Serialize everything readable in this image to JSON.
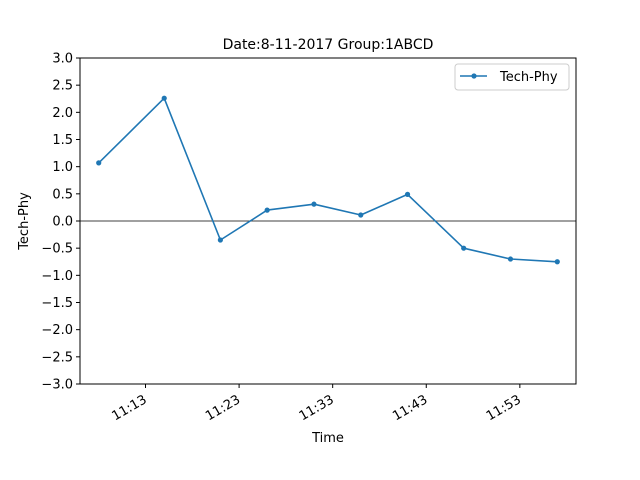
{
  "chart_data": {
    "type": "line",
    "title": "Date:8-11-2017 Group:1ABCD",
    "xlabel": "Time",
    "ylabel": "Tech-Phy",
    "x": [
      "11:08",
      "11:15",
      "11:21",
      "11:26",
      "11:31",
      "11:36",
      "11:41",
      "11:47",
      "11:52",
      "11:57"
    ],
    "series": [
      {
        "name": "Tech-Phy",
        "color": "#1f77b4",
        "marker": "circle",
        "values": [
          1.07,
          2.26,
          -0.35,
          0.2,
          0.31,
          0.11,
          0.49,
          -0.5,
          -0.7,
          -0.75
        ]
      }
    ],
    "ylim": [
      -3.0,
      3.0
    ],
    "yticks": [
      3.0,
      2.5,
      2.0,
      1.5,
      1.0,
      0.5,
      0.0,
      -0.5,
      -1.0,
      -1.5,
      -2.0,
      -2.5,
      -3.0
    ],
    "ytick_labels": [
      "3.0",
      "2.5",
      "2.0",
      "1.5",
      "1.0",
      "0.5",
      "0.0",
      "−0.5",
      "−1.0",
      "−1.5",
      "−2.0",
      "−2.5",
      "−3.0"
    ],
    "xlim": [
      "11:06",
      "11:59"
    ],
    "xticks": [
      "11:13",
      "11:23",
      "11:33",
      "11:43",
      "11:53"
    ],
    "xtick_rotation_deg": 30,
    "grid": false,
    "zero_line": true,
    "legend": {
      "placement": "top-right"
    }
  }
}
